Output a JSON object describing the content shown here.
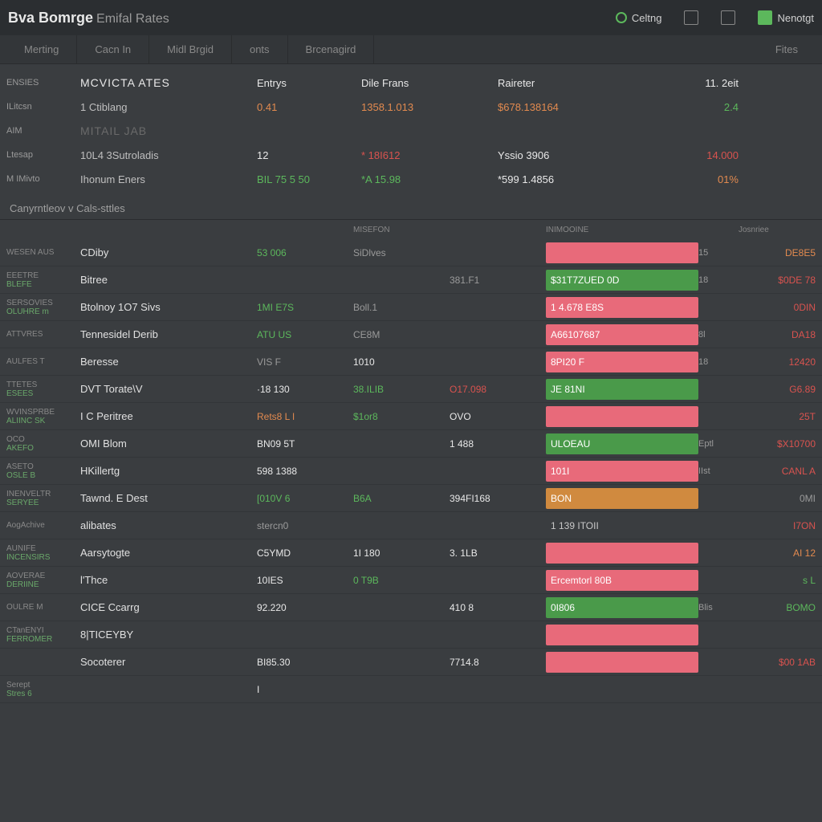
{
  "colors": {
    "bg": "#3a3d40",
    "header": "#2b2e31",
    "green": "#5cb85c",
    "red": "#d9534f",
    "orange": "#e28a4f",
    "pink": "#e86a7a",
    "dim": "#9a9a9a",
    "white": "#e8e8e8"
  },
  "header": {
    "brand_main": "Bva Bomrge",
    "brand_sub": "Emifal Rates",
    "actions": [
      {
        "icon": "dot",
        "label": "Celtng"
      },
      {
        "icon": "grid",
        "label": ""
      },
      {
        "icon": "box",
        "label": ""
      },
      {
        "icon": "dollar",
        "label": "Nenotgt"
      }
    ]
  },
  "tabs": [
    "Merting",
    "Cacn In",
    "Midl Brgid",
    "onts",
    "Brcenagird",
    "Fites"
  ],
  "summary": [
    {
      "label": "ENSIES",
      "name": "MCVICTA ATES",
      "v1": {
        "t": "Entrys",
        "c": "white"
      },
      "v2": {
        "t": "Dile  Frans",
        "c": "white"
      },
      "v3": {
        "t": "Raireter",
        "c": "white"
      },
      "v4": {
        "t": "11. 2eit",
        "c": "white"
      }
    },
    {
      "label": "ILitcsn",
      "name": "1 Ctiblang",
      "v1": {
        "t": "0.41",
        "c": "orange"
      },
      "v2": {
        "t": "1358.1.013",
        "c": "orange"
      },
      "v3": {
        "t": "$678.138164",
        "c": "orange"
      },
      "v4": {
        "t": "2.4",
        "c": "green"
      }
    },
    {
      "label": "AIM",
      "name": "MITAIL JAB",
      "v1": {
        "t": "",
        "c": "dim"
      },
      "v2": {
        "t": "",
        "c": "dim"
      },
      "v3": {
        "t": "",
        "c": "dim"
      },
      "v4": {
        "t": "",
        "c": "dim"
      }
    },
    {
      "label": "  Ltesap",
      "name": "10L4 3Sutroladis",
      "v1": {
        "t": "12",
        "c": "white"
      },
      "v2": {
        "t": "*  18I612",
        "c": "red"
      },
      "v3": {
        "t": "Yssio   3906",
        "c": "white"
      },
      "v4": {
        "t": "14.000",
        "c": "red"
      }
    },
    {
      "label": "M  IMivto",
      "name": "Ihonum Eners",
      "v1": {
        "t": "BIL 75   5 50",
        "c": "green"
      },
      "v2": {
        "t": "*A 15.98",
        "c": "green"
      },
      "v3": {
        "t": "*599   1.4856",
        "c": "white"
      },
      "v4": {
        "t": "01%",
        "c": "orange"
      }
    }
  ],
  "section2_title": "Canyrntleov v Cals-sttles",
  "table": {
    "head": [
      "",
      "",
      "",
      "MISEFON",
      "",
      "INIMOOINE",
      "",
      "Josnriee"
    ],
    "rows": [
      {
        "t1": "WESEN AUS",
        "t2": "",
        "name": "CDiby",
        "a": {
          "t": "53 006",
          "c": "green"
        },
        "b": {
          "t": "SiDlves",
          "c": "dim"
        },
        "c": {
          "t": "",
          "c": "dim"
        },
        "hl": {
          "t": "",
          "c": "pink"
        },
        "e": "15",
        "f": {
          "t": "DE8E5",
          "c": "orange"
        }
      },
      {
        "t1": "EEETRE",
        "t2": "BLEFE",
        "name": "Bitree",
        "a": {
          "t": "",
          "c": "dim"
        },
        "b": {
          "t": "",
          "c": "dim"
        },
        "c": {
          "t": "381.F1",
          "c": "dim"
        },
        "hl": {
          "t": "$31T7ZUED 0D",
          "c": "green"
        },
        "e": "18",
        "f": {
          "t": "$0DE 78",
          "c": "red"
        }
      },
      {
        "t1": "SERSOVIES",
        "t2": "OLUHRE m",
        "name": "Btolnoy 1O7 Sivs",
        "a": {
          "t": "1MI E7S",
          "c": "green"
        },
        "b": {
          "t": "Boll.1",
          "c": "dim"
        },
        "c": {
          "t": "",
          "c": "dim"
        },
        "hl": {
          "t": "1 4.678 E8S",
          "c": "pink"
        },
        "e": "",
        "f": {
          "t": "0DIN",
          "c": "red"
        }
      },
      {
        "t1": "ATTVRES",
        "t2": "",
        "name": "Tennesidel Derib",
        "a": {
          "t": "ATU US",
          "c": "green"
        },
        "b": {
          "t": "CE8M",
          "c": "dim"
        },
        "c": {
          "t": "",
          "c": "dim"
        },
        "hl": {
          "t": "A66107687",
          "c": "pink"
        },
        "e": "8l",
        "f": {
          "t": "DA18",
          "c": "red"
        }
      },
      {
        "t1": "AULFES T",
        "t2": "",
        "name": "Beresse",
        "a": {
          "t": "VIS F",
          "c": "dim"
        },
        "b": {
          "t": "1010",
          "c": "white"
        },
        "c": {
          "t": "",
          "c": "dim"
        },
        "hl": {
          "t": "8PI20 F",
          "c": "pink"
        },
        "e": "18",
        "f": {
          "t": "12420",
          "c": "red"
        }
      },
      {
        "t1": "TTETES",
        "t2": "ESEES",
        "name": "DVT Torate\\V",
        "a": {
          "t": "·18 130",
          "c": "white"
        },
        "b": {
          "t": "38.ILIB",
          "c": "green"
        },
        "c": {
          "t": "O17.098",
          "c": "red"
        },
        "hl": {
          "t": "JE 81NI",
          "c": "green"
        },
        "e": "",
        "f": {
          "t": "G6.89",
          "c": "red"
        }
      },
      {
        "t1": "WVINSPRBE",
        "t2": "ALIINC SK",
        "name": "I C Peritree",
        "a": {
          "t": "Rets8 L l",
          "c": "orange"
        },
        "b": {
          "t": "$1or8",
          "c": "green"
        },
        "c": {
          "t": "OVO",
          "c": "white"
        },
        "hl": {
          "t": "",
          "c": "pink"
        },
        "e": "",
        "f": {
          "t": "25T",
          "c": "red"
        }
      },
      {
        "t1": "OCO",
        "t2": "AKEFO",
        "name": "OMI Blom",
        "a": {
          "t": "BN09 5T",
          "c": "white"
        },
        "b": {
          "t": "",
          "c": "dim"
        },
        "c": {
          "t": "1 488",
          "c": "white"
        },
        "hl": {
          "t": "ULOEAU",
          "c": "green"
        },
        "e": "Eptl",
        "f": {
          "t": "$X10700",
          "c": "red"
        }
      },
      {
        "t1": "ASETO",
        "t2": "OSLE B",
        "name": "HKillertg",
        "a": {
          "t": "598 1388",
          "c": "white"
        },
        "b": {
          "t": "",
          "c": "dim"
        },
        "c": {
          "t": "",
          "c": "dim"
        },
        "hl": {
          "t": "101I",
          "c": "pink"
        },
        "e": "IIst",
        "f": {
          "t": "CANL A",
          "c": "red"
        }
      },
      {
        "t1": "INENVELTR",
        "t2": "SERYEE",
        "name": "Tawnd. E Dest",
        "a": {
          "t": "[010V 6",
          "c": "green"
        },
        "b": {
          "t": "B6A",
          "c": "green"
        },
        "c": {
          "t": "394FI168",
          "c": "white"
        },
        "hl": {
          "t": "BON",
          "c": "orange"
        },
        "e": "",
        "f": {
          "t": "0MI",
          "c": "dim"
        }
      },
      {
        "t1": "AogAchive",
        "t2": "",
        "name": "alibates",
        "a": {
          "t": "stercn0",
          "c": "dim"
        },
        "b": {
          "t": "",
          "c": "dim"
        },
        "c": {
          "t": "",
          "c": "dim"
        },
        "hl": {
          "t": "1 139 ITOII",
          "c": "none"
        },
        "e": "",
        "f": {
          "t": "I7ON",
          "c": "red"
        }
      },
      {
        "t1": "AUNIFE",
        "t2": "INCENSIRS",
        "name": "Aarsytogte",
        "a": {
          "t": "C5YMD",
          "c": "white"
        },
        "b": {
          "t": "1I 180",
          "c": "white"
        },
        "c": {
          "t": "3. 1LB",
          "c": "white"
        },
        "hl": {
          "t": "",
          "c": "pink"
        },
        "e": "",
        "f": {
          "t": "AI 12",
          "c": "orange"
        }
      },
      {
        "t1": "AOVERAE",
        "t2": "DERIINE",
        "name": "l'Thce",
        "a": {
          "t": "10IES",
          "c": "white"
        },
        "b": {
          "t": "0 T9B",
          "c": "green"
        },
        "c": {
          "t": "",
          "c": "dim"
        },
        "hl": {
          "t": "Ercemtorl 80B",
          "c": "pink"
        },
        "e": "",
        "f": {
          "t": "s L",
          "c": "green"
        }
      },
      {
        "t1": "OULRE M",
        "t2": "",
        "name": "CICE Ccarrg",
        "a": {
          "t": "92.220",
          "c": "white"
        },
        "b": {
          "t": "",
          "c": "dim"
        },
        "c": {
          "t": "410 8",
          "c": "white"
        },
        "hl": {
          "t": "0I806",
          "c": "green"
        },
        "e": "Blis",
        "f": {
          "t": "BOMO",
          "c": "green"
        }
      },
      {
        "t1": "CTanENYI",
        "t2": "FERROMER",
        "name": "8|TICEYBY",
        "a": {
          "t": "",
          "c": "dim"
        },
        "b": {
          "t": "",
          "c": "dim"
        },
        "c": {
          "t": "",
          "c": "dim"
        },
        "hl": {
          "t": "",
          "c": "pink"
        },
        "e": "",
        "f": {
          "t": "",
          "c": "dim"
        }
      },
      {
        "t1": "",
        "t2": "",
        "name": "Socoterer",
        "a": {
          "t": "BI85.30",
          "c": "white"
        },
        "b": {
          "t": "",
          "c": "dim"
        },
        "c": {
          "t": "7714.8",
          "c": "white"
        },
        "hl": {
          "t": "",
          "c": "pink"
        },
        "e": "",
        "f": {
          "t": "$00 1AB",
          "c": "red"
        }
      },
      {
        "t1": "Serept",
        "t2": "Stres 6",
        "name": "",
        "a": {
          "t": "I",
          "c": "white"
        },
        "b": {
          "t": "",
          "c": "dim"
        },
        "c": {
          "t": "",
          "c": "dim"
        },
        "hl": {
          "t": "",
          "c": "none"
        },
        "e": "",
        "f": {
          "t": "",
          "c": "dim"
        }
      }
    ]
  }
}
